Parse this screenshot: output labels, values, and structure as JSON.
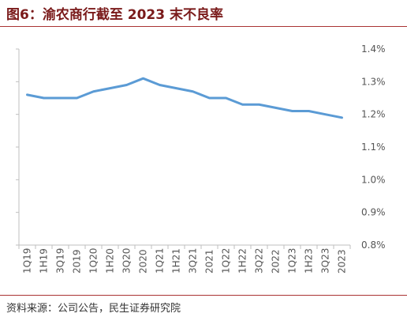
{
  "figure": {
    "title": "图6：渝农商行截至 2023 末不良率",
    "source": "资料来源：公司公告，民生证券研究院"
  },
  "colors": {
    "line": "#5b9bd5",
    "axis": "#bfbfbf",
    "title": "#7a1a1a",
    "rule": "#aa3333"
  },
  "chart_data": {
    "type": "line",
    "title": "",
    "xlabel": "",
    "ylabel": "",
    "categories": [
      "1Q19",
      "1H19",
      "3Q19",
      "2019",
      "1Q20",
      "1H20",
      "3Q20",
      "2020",
      "1Q21",
      "1H21",
      "3Q21",
      "2021",
      "1Q22",
      "1H22",
      "3Q22",
      "2022",
      "1Q23",
      "1H23",
      "3Q23",
      "2023"
    ],
    "series": [
      {
        "values": [
          1.26,
          1.25,
          1.25,
          1.25,
          1.27,
          1.28,
          1.29,
          1.31,
          1.29,
          1.28,
          1.27,
          1.25,
          1.25,
          1.23,
          1.23,
          1.22,
          1.21,
          1.21,
          1.2,
          1.19
        ]
      }
    ],
    "ylim": [
      0.8,
      1.4
    ],
    "y_ticks": [
      "0.8%",
      "0.9%",
      "1.0%",
      "1.1%",
      "1.2%",
      "1.3%",
      "1.4%"
    ],
    "y_axis_side": "right",
    "grid": false,
    "legend": "none"
  }
}
